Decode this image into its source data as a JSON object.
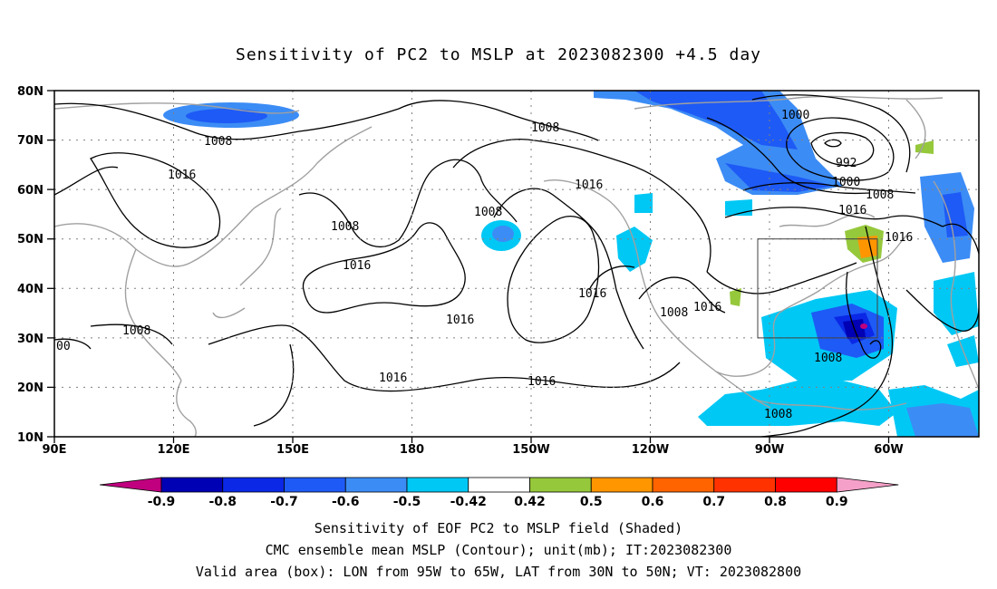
{
  "title": "Sensitivity of PC2 to MSLP at 2023082300 +4.5 day",
  "map": {
    "lon_ticks": [
      "90E",
      "120E",
      "150E",
      "180",
      "150W",
      "120W",
      "90W",
      "60W"
    ],
    "lat_ticks": [
      "80N",
      "70N",
      "60N",
      "50N",
      "40N",
      "30N",
      "20N",
      "10N"
    ],
    "lon_range": [
      "90E",
      "30W"
    ],
    "lat_range": [
      "10N",
      "80N"
    ],
    "grid": "dotted",
    "contour_labels": [
      "1008",
      "1016",
      "1008",
      "1008",
      "1016",
      "1016",
      "1016",
      "1016",
      "1008",
      "1016",
      "1016",
      "1000",
      "992",
      "1000",
      "1008",
      "1016",
      "1016",
      "1008",
      "1008",
      "1008",
      "00"
    ],
    "box": {
      "lon_from": "95W",
      "lon_to": "65W",
      "lat_from": "30N",
      "lat_to": "50N"
    }
  },
  "colorbar": {
    "labels": [
      "-0.9",
      "-0.8",
      "-0.7",
      "-0.6",
      "-0.5",
      "-0.42",
      "0.42",
      "0.5",
      "0.6",
      "0.7",
      "0.8",
      "0.9"
    ],
    "colors": [
      "#c0007f",
      "#0000b4",
      "#0a28e6",
      "#1e5af5",
      "#3c8cf5",
      "#00c8f5",
      "#ffffff",
      "#96c83c",
      "#ff9600",
      "#ff6400",
      "#ff3200",
      "#ff0000",
      "#f5a0c8"
    ]
  },
  "captions": [
    "Sensitivity of EOF PC2 to MSLP field (Shaded)",
    "CMC ensemble mean MSLP (Contour); unit(mb); IT:2023082300",
    "Valid area (box): LON from 95W to 65W, LAT from 30N to 50N; VT: 2023082800"
  ]
}
